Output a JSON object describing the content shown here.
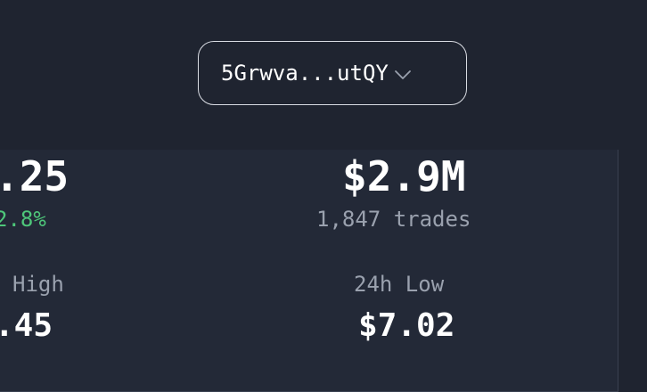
{
  "account": {
    "address_short": "5Grwva...utQY",
    "dropdown_icon": "chevron-down-icon"
  },
  "stats": {
    "price_value": ".25",
    "price_change": "2.8%",
    "volume_value": "$2.9M",
    "volume_trades": "1,847 trades",
    "high_label": "High",
    "high_value": ".45",
    "low_label": "24h Low",
    "low_value": "$7.02"
  },
  "colors": {
    "positive": "#4ec77a",
    "muted": "#9aa1ae",
    "background": "#1f2430",
    "panel": "#232937"
  }
}
